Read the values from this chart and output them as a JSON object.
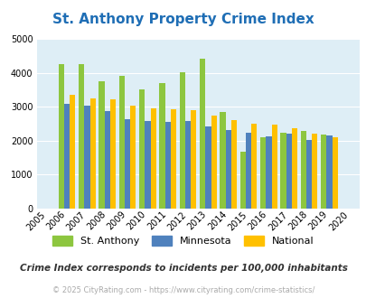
{
  "title": "St. Anthony Property Crime Index",
  "years": [
    2005,
    2006,
    2007,
    2008,
    2009,
    2010,
    2011,
    2012,
    2013,
    2014,
    2015,
    2016,
    2017,
    2018,
    2019,
    2020
  ],
  "st_anthony": [
    null,
    4250,
    4250,
    3750,
    3920,
    3520,
    3700,
    4010,
    4400,
    2840,
    1670,
    2110,
    2230,
    2280,
    2170,
    null
  ],
  "minnesota": [
    null,
    3090,
    3030,
    2860,
    2640,
    2570,
    2540,
    2580,
    2420,
    2300,
    2220,
    2120,
    2200,
    2020,
    2150,
    null
  ],
  "national": [
    null,
    3360,
    3250,
    3220,
    3040,
    2950,
    2930,
    2890,
    2750,
    2600,
    2500,
    2480,
    2360,
    2200,
    2110,
    null
  ],
  "st_anthony_color": "#8dc63f",
  "minnesota_color": "#4f81bd",
  "national_color": "#ffc000",
  "bg_color": "#deeef6",
  "ylim": [
    0,
    5000
  ],
  "yticks": [
    0,
    1000,
    2000,
    3000,
    4000,
    5000
  ],
  "legend_labels": [
    "St. Anthony",
    "Minnesota",
    "National"
  ],
  "subtitle": "Crime Index corresponds to incidents per 100,000 inhabitants",
  "footer": "© 2025 CityRating.com - https://www.cityrating.com/crime-statistics/",
  "title_color": "#1f6eb5",
  "subtitle_color": "#333333",
  "footer_color": "#aaaaaa"
}
